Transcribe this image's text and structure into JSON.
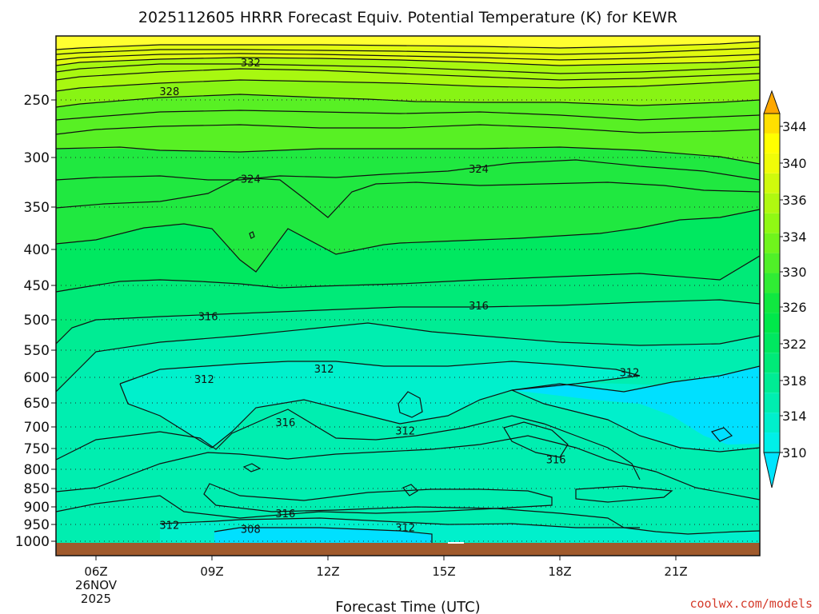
{
  "chart_data": {
    "type": "heatmap",
    "title": "2025112605 HRRR Forecast Equiv. Potential Temperature (K) for KEWR",
    "xlabel": "Forecast Time (UTC)",
    "ylabel": "",
    "x_ticks": [
      "06Z",
      "09Z",
      "12Z",
      "15Z",
      "18Z",
      "21Z"
    ],
    "x_date_lines": [
      "26NOV",
      "2025"
    ],
    "y_ticks": [
      250,
      300,
      350,
      400,
      450,
      500,
      550,
      600,
      650,
      700,
      750,
      800,
      850,
      900,
      950,
      1000
    ],
    "ylim": [
      1000,
      200
    ],
    "x_range_hours": [
      5,
      23
    ],
    "grid": "dotted horizontal at each pressure tick",
    "colorbar": {
      "ticks": [
        310,
        314,
        318,
        322,
        326,
        330,
        334,
        336,
        340,
        344
      ],
      "levels": [
        308,
        310,
        312,
        314,
        316,
        318,
        320,
        322,
        324,
        326,
        328,
        330,
        332,
        334,
        336,
        338,
        340,
        342,
        344,
        346
      ],
      "colors": [
        "#00e5ff",
        "#00f0e8",
        "#00efcc",
        "#00eeb0",
        "#00ec94",
        "#00ea78",
        "#00e860",
        "#00e84a",
        "#10e840",
        "#30ec34",
        "#50f028",
        "#70f41c",
        "#90f814",
        "#b0f810",
        "#d0fa0c",
        "#f0fc08",
        "#ffff00",
        "#ffe000",
        "#ffc000",
        "#ffa800"
      ],
      "extend": "both"
    },
    "contour_labels": [
      {
        "text": "332",
        "hour": 10.0,
        "p": 218
      },
      {
        "text": "328",
        "hour": 7.9,
        "p": 243
      },
      {
        "text": "324",
        "hour": 10.0,
        "p": 322
      },
      {
        "text": "324",
        "hour": 15.9,
        "p": 312
      },
      {
        "text": "316",
        "hour": 8.9,
        "p": 496
      },
      {
        "text": "316",
        "hour": 15.9,
        "p": 480
      },
      {
        "text": "312",
        "hour": 11.9,
        "p": 585
      },
      {
        "text": "312",
        "hour": 8.8,
        "p": 605
      },
      {
        "text": "312",
        "hour": 19.8,
        "p": 592
      },
      {
        "text": "316",
        "hour": 10.9,
        "p": 692
      },
      {
        "text": "312",
        "hour": 14.0,
        "p": 710
      },
      {
        "text": "316",
        "hour": 17.9,
        "p": 778
      },
      {
        "text": "316",
        "hour": 10.9,
        "p": 920
      },
      {
        "text": "312",
        "hour": 7.9,
        "p": 953
      },
      {
        "text": "308",
        "hour": 10.0,
        "p": 966
      },
      {
        "text": "312",
        "hour": 14.0,
        "p": 961
      }
    ],
    "terrain_color": "#a05a2c"
  },
  "credit": "coolwx.com/models"
}
